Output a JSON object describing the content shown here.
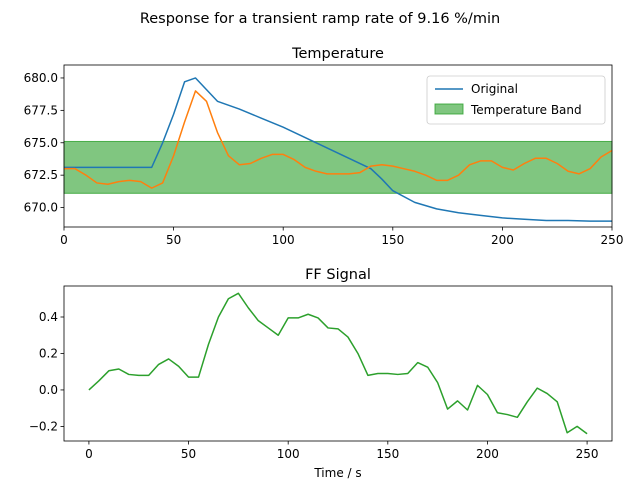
{
  "suptitle": "Response for a transient ramp rate of 9.16 %/min",
  "chart_data": [
    {
      "type": "line",
      "title": "Temperature",
      "xlabel": "",
      "ylabel": "",
      "xlim": [
        0,
        250
      ],
      "ylim": [
        668.5,
        681.0
      ],
      "xticks": [
        0,
        50,
        100,
        150,
        200,
        250
      ],
      "yticks": [
        670.0,
        672.5,
        675.0,
        677.5,
        680.0
      ],
      "xtick_labels": [
        "0",
        "50",
        "100",
        "150",
        "200",
        "250"
      ],
      "ytick_labels": [
        "670.0",
        "672.5",
        "675.0",
        "677.5",
        "680.0"
      ],
      "band": {
        "name": "Temperature Band",
        "y0": 671.1,
        "y1": 675.1,
        "color": "#2ca02c"
      },
      "legend_position": "upper right",
      "series": [
        {
          "name": "Original",
          "color": "#1f77b4",
          "x": [
            0,
            5,
            10,
            15,
            20,
            25,
            30,
            35,
            40,
            45,
            50,
            55,
            60,
            65,
            70,
            80,
            90,
            100,
            110,
            120,
            130,
            140,
            145,
            150,
            160,
            170,
            180,
            190,
            200,
            210,
            220,
            230,
            240,
            250
          ],
          "y": [
            673.1,
            673.1,
            673.1,
            673.1,
            673.1,
            673.1,
            673.1,
            673.1,
            673.1,
            675.0,
            677.2,
            679.7,
            680.0,
            679.1,
            678.2,
            677.6,
            676.9,
            676.2,
            675.4,
            674.6,
            673.8,
            673.0,
            672.2,
            671.3,
            670.4,
            669.9,
            669.6,
            669.4,
            669.2,
            669.1,
            669.0,
            669.0,
            668.95,
            668.95
          ]
        },
        {
          "name": "",
          "color": "#ff7f0e",
          "x": [
            0,
            5,
            10,
            15,
            20,
            25,
            30,
            35,
            40,
            45,
            50,
            55,
            60,
            65,
            70,
            75,
            80,
            85,
            90,
            95,
            100,
            105,
            110,
            115,
            120,
            125,
            130,
            135,
            140,
            145,
            150,
            155,
            160,
            165,
            170,
            175,
            180,
            185,
            190,
            195,
            200,
            205,
            210,
            215,
            220,
            225,
            230,
            235,
            240,
            245,
            250
          ],
          "y": [
            673.0,
            673.0,
            672.5,
            671.9,
            671.8,
            672.0,
            672.1,
            672.0,
            671.5,
            671.9,
            674.0,
            676.6,
            679.0,
            678.2,
            675.8,
            674.0,
            673.3,
            673.4,
            673.8,
            674.1,
            674.1,
            673.7,
            673.1,
            672.8,
            672.6,
            672.6,
            672.6,
            672.7,
            673.2,
            673.3,
            673.2,
            673.0,
            672.8,
            672.5,
            672.1,
            672.1,
            672.5,
            673.3,
            673.6,
            673.6,
            673.1,
            672.9,
            673.4,
            673.8,
            673.8,
            673.4,
            672.8,
            672.6,
            673.0,
            673.9,
            674.4
          ]
        }
      ]
    },
    {
      "type": "line",
      "title": "FF Signal",
      "xlabel": "Time / s",
      "ylabel": "",
      "xlim": [
        -12.5,
        262.5
      ],
      "ylim": [
        -0.28,
        0.57
      ],
      "xticks": [
        0,
        50,
        100,
        150,
        200,
        250
      ],
      "yticks": [
        -0.2,
        0.0,
        0.2,
        0.4
      ],
      "xtick_labels": [
        "0",
        "50",
        "100",
        "150",
        "200",
        "250"
      ],
      "ytick_labels": [
        "−0.2",
        "0.0",
        "0.2",
        "0.4"
      ],
      "series": [
        {
          "name": "",
          "color": "#2ca02c",
          "x": [
            0,
            5,
            10,
            15,
            20,
            25,
            30,
            35,
            40,
            45,
            50,
            55,
            60,
            65,
            70,
            75,
            80,
            85,
            90,
            95,
            100,
            105,
            110,
            115,
            120,
            125,
            130,
            135,
            140,
            145,
            150,
            155,
            160,
            165,
            170,
            175,
            180,
            185,
            190,
            195,
            200,
            205,
            210,
            215,
            220,
            225,
            230,
            235,
            240,
            245,
            250
          ],
          "y": [
            0.0,
            0.05,
            0.105,
            0.115,
            0.085,
            0.08,
            0.08,
            0.14,
            0.17,
            0.13,
            0.07,
            0.07,
            0.25,
            0.4,
            0.5,
            0.53,
            0.45,
            0.38,
            0.34,
            0.3,
            0.395,
            0.395,
            0.415,
            0.395,
            0.34,
            0.335,
            0.29,
            0.2,
            0.08,
            0.09,
            0.09,
            0.085,
            0.09,
            0.15,
            0.125,
            0.04,
            -0.105,
            -0.06,
            -0.11,
            0.025,
            -0.025,
            -0.125,
            -0.135,
            -0.15,
            -0.065,
            0.01,
            -0.02,
            -0.065,
            -0.235,
            -0.2,
            -0.24
          ]
        }
      ]
    }
  ]
}
